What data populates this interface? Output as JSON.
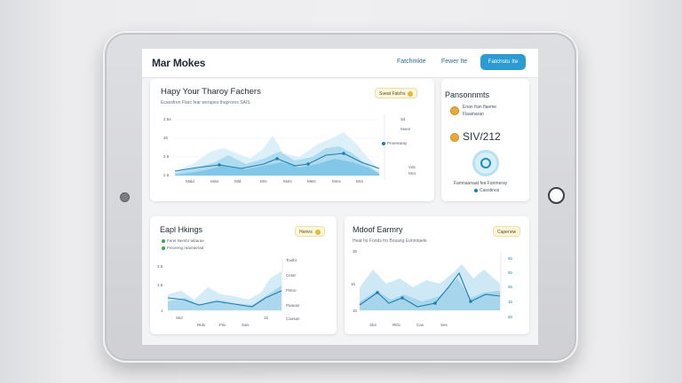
{
  "header": {
    "app_title": "Mar Mokes",
    "nav": [
      "Fatchmkte",
      "Fewer Ite"
    ],
    "button_label": "Fatchstu Ite"
  },
  "colors": {
    "accent": "#2b9bd1",
    "area_light": "#cfe9f5",
    "area_mid": "#9dd2ea",
    "line": "#2286b5",
    "badge": "#e8a93a"
  },
  "card_main": {
    "title": "Hapy Your Tharoy Fachers",
    "subtitle": "Ecansfren Flarc fear werapes thaprores SAIS",
    "pill": "Sueat Fatchs",
    "y_ticks": [
      "2.84",
      "2b",
      "2.6",
      "2.6"
    ],
    "x_ticks": [
      "Mald",
      "Miss",
      "Mld",
      "Mrs",
      "Mots",
      "Mets",
      "Mms",
      "Mcs"
    ],
    "legend": [
      "3d",
      "Moes",
      "Proerearay",
      "Vds",
      "Mcs"
    ]
  },
  "card_side": {
    "title": "Pansonnmts",
    "row1": "Enan fran flaeme",
    "row1b": "Flaamaran",
    "big_value": "SIV/212",
    "caption": "Famnaanaat fea Fanmeray",
    "caption2": "Caostinos"
  },
  "card_bl": {
    "title": "Eapl Hkings",
    "pill": "Hemrs",
    "legend": [
      "Feret Nemhr tebarae",
      "Fmoreng reareaerad"
    ],
    "y_ticks": [
      "3.8",
      "3.6",
      "1"
    ],
    "x_ticks": [
      "Sk2",
      "Rtds",
      "Pat",
      "Sws"
    ],
    "right_ticks": [
      "Toolbr",
      "Cetar",
      "Pstno",
      "Paaeas",
      "Caosan"
    ],
    "marker": "1b"
  },
  "card_br": {
    "title": "Mdoof Earmry",
    "subtitle": "Heat ho Fonds fro Bosang Eonmtaele",
    "pill": "Capenow",
    "y_ticks": [
      "3b",
      "1b",
      "1b"
    ],
    "x_ticks": [
      "Sk3",
      "Rthc",
      "Cas",
      "Ses"
    ],
    "right_ticks": [
      "5b",
      "5b",
      "5b",
      "1b",
      "5b"
    ]
  }
}
